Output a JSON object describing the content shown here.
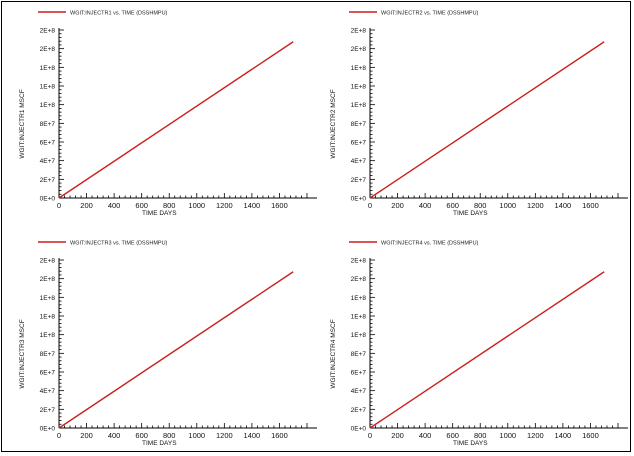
{
  "colors": {
    "line": "#cc1f1f",
    "axis": "#000000",
    "background": "#ffffff"
  },
  "chart_data": [
    {
      "type": "line",
      "legend": "WGIT:INJECTR1 vs. TIME (DSSHMPU)",
      "ylabel": "WGIT:INJECTR1   MSCF",
      "xlabel": "TIME   DAYS",
      "xlim": [
        0,
        1800
      ],
      "ylim": [
        0,
        200000000
      ],
      "xticks": [
        "0",
        "200",
        "400",
        "600",
        "800",
        "1000",
        "1200",
        "1400",
        "1600"
      ],
      "yticks": [
        "0E+0",
        "2E+7",
        "4E+7",
        "6E+7",
        "8E+7",
        "1E+8",
        "1E+8",
        "1E+8",
        "2E+8",
        "2E+8"
      ],
      "series": [
        {
          "name": "WGIT:INJECTR1",
          "x": [
            0,
            1700
          ],
          "y": [
            0,
            186000000
          ]
        }
      ]
    },
    {
      "type": "line",
      "legend": "WGIT:INJECTR2 vs. TIME (DSSHMPU)",
      "ylabel": "WGIT:INJECTR2   MSCF",
      "xlabel": "TIME   DAYS",
      "xlim": [
        0,
        1800
      ],
      "ylim": [
        0,
        200000000
      ],
      "xticks": [
        "0",
        "200",
        "400",
        "600",
        "800",
        "1000",
        "1200",
        "1400",
        "1600"
      ],
      "yticks": [
        "0E+0",
        "2E+7",
        "4E+7",
        "6E+7",
        "8E+7",
        "1E+8",
        "1E+8",
        "1E+8",
        "2E+8",
        "2E+8"
      ],
      "series": [
        {
          "name": "WGIT:INJECTR2",
          "x": [
            0,
            1700
          ],
          "y": [
            0,
            186000000
          ]
        }
      ]
    },
    {
      "type": "line",
      "legend": "WGIT:INJECTR3 vs. TIME (DSSHMPU)",
      "ylabel": "WGIT:INJECTR3   MSCF",
      "xlabel": "TIME   DAYS",
      "xlim": [
        0,
        1800
      ],
      "ylim": [
        0,
        200000000
      ],
      "xticks": [
        "0",
        "200",
        "400",
        "600",
        "800",
        "1000",
        "1200",
        "1400",
        "1600"
      ],
      "yticks": [
        "0E+0",
        "2E+7",
        "4E+7",
        "6E+7",
        "8E+7",
        "1E+8",
        "1E+8",
        "1E+8",
        "2E+8",
        "2E+8"
      ],
      "series": [
        {
          "name": "WGIT:INJECTR3",
          "x": [
            0,
            1700
          ],
          "y": [
            0,
            186000000
          ]
        }
      ]
    },
    {
      "type": "line",
      "legend": "WGIT:INJECTR4 vs. TIME (DSSHMPU)",
      "ylabel": "WGIT:INJECTR4   MSCF",
      "xlabel": "TIME   DAYS",
      "xlim": [
        0,
        1800
      ],
      "ylim": [
        0,
        200000000
      ],
      "xticks": [
        "0",
        "200",
        "400",
        "600",
        "800",
        "1000",
        "1200",
        "1400",
        "1600"
      ],
      "yticks": [
        "0E+0",
        "2E+7",
        "4E+7",
        "6E+7",
        "8E+7",
        "1E+8",
        "1E+8",
        "1E+8",
        "2E+8",
        "2E+8"
      ],
      "series": [
        {
          "name": "WGIT:INJECTR4",
          "x": [
            0,
            1700
          ],
          "y": [
            0,
            186000000
          ]
        }
      ]
    }
  ]
}
